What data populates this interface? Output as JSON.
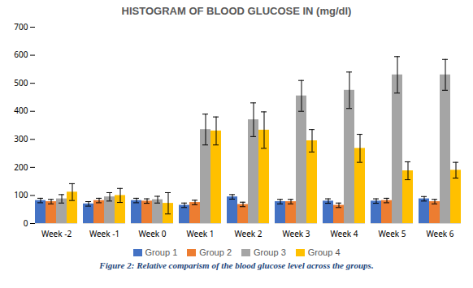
{
  "chart_data": {
    "type": "bar",
    "title": "HISTOGRAM OF BLOOD GLUCOSE IN (mg/dl)",
    "caption": "Figure 2: Relative comparism of the blood glucose level across the groups.",
    "categories": [
      "Week -2",
      "Week -1",
      "Week 0",
      "Week 1",
      "Week 2",
      "Week 3",
      "Week 4",
      "Week 5",
      "Week 6"
    ],
    "series": [
      {
        "name": "Group 1",
        "color": "#4472C4",
        "values": [
          82,
          70,
          82,
          65,
          95,
          78,
          80,
          80,
          88
        ],
        "errors": [
          8,
          8,
          8,
          8,
          8,
          8,
          8,
          8,
          8
        ]
      },
      {
        "name": "Group 2",
        "color": "#ED7D31",
        "values": [
          78,
          82,
          80,
          75,
          68,
          78,
          65,
          82,
          78
        ],
        "errors": [
          8,
          8,
          8,
          8,
          8,
          8,
          8,
          8,
          8
        ]
      },
      {
        "name": "Group 3",
        "color": "#A5A5A5",
        "values": [
          88,
          95,
          85,
          335,
          370,
          455,
          475,
          530,
          530
        ],
        "errors": [
          15,
          15,
          12,
          55,
          60,
          55,
          65,
          65,
          55
        ]
      },
      {
        "name": "Group 4",
        "color": "#FFC000",
        "values": [
          112,
          100,
          72,
          330,
          333,
          295,
          268,
          188,
          190
        ],
        "errors": [
          30,
          25,
          38,
          50,
          65,
          40,
          50,
          32,
          28
        ]
      }
    ],
    "ylim": [
      0,
      700
    ],
    "yticks": [
      0,
      100,
      200,
      300,
      400,
      500,
      600,
      700
    ],
    "grid": false,
    "legend": "bottom"
  }
}
